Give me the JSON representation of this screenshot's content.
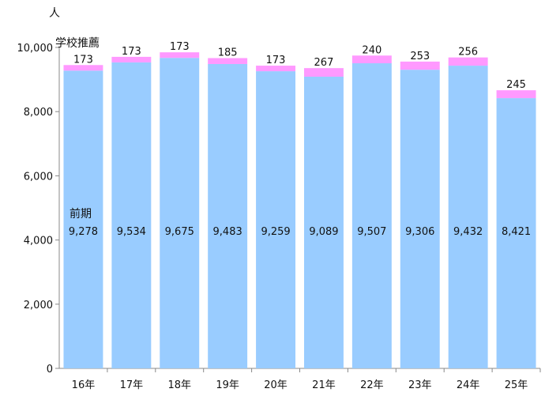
{
  "chart_data": {
    "type": "bar",
    "stacked": true,
    "y_unit": "人",
    "categories": [
      "16年",
      "17年",
      "18年",
      "19年",
      "20年",
      "21年",
      "22年",
      "23年",
      "24年",
      "25年"
    ],
    "series": [
      {
        "name": "前期",
        "color": "#99ccff",
        "values": [
          9278,
          9534,
          9675,
          9483,
          9259,
          9089,
          9507,
          9306,
          9432,
          8421
        ],
        "labels": [
          "9,278",
          "9,534",
          "9,675",
          "9,483",
          "9,259",
          "9,089",
          "9,507",
          "9,306",
          "9,432",
          "8,421"
        ]
      },
      {
        "name": "学校推薦",
        "color": "#ff99ff",
        "values": [
          173,
          173,
          173,
          185,
          173,
          267,
          240,
          253,
          256,
          245
        ],
        "labels": [
          "173",
          "173",
          "173",
          "185",
          "173",
          "267",
          "240",
          "253",
          "256",
          "245"
        ]
      }
    ],
    "ylim": [
      0,
      10000
    ],
    "yticks": [
      0,
      2000,
      4000,
      6000,
      8000,
      10000
    ],
    "ytick_labels": [
      "0",
      "2,000",
      "4,000",
      "6,000",
      "8,000",
      "10,000"
    ],
    "grid": false,
    "legend": "none"
  }
}
